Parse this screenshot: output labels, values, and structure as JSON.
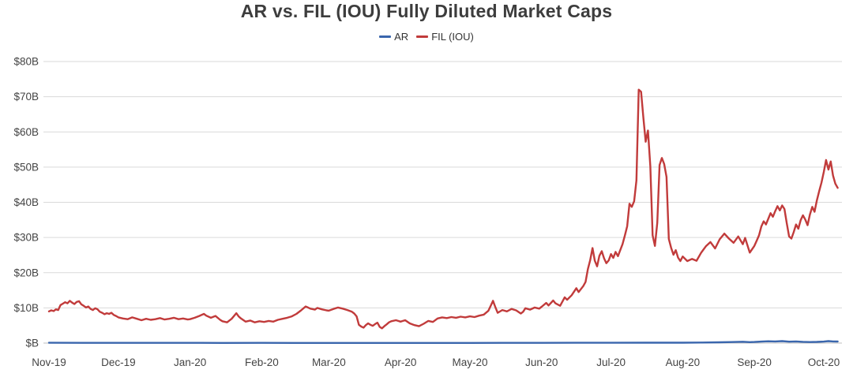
{
  "chart_data": {
    "type": "line",
    "title": "AR vs. FIL (IOU) Fully Diluted Market Caps",
    "xlabel": "",
    "ylabel": "",
    "x_unit": "days since Nov-19 start",
    "xlim": [
      0,
      341
    ],
    "ylim": [
      0,
      80
    ],
    "grid": true,
    "legend_position": "top-center",
    "x_tick_labels": [
      "Nov-19",
      "Dec-19",
      "Jan-20",
      "Feb-20",
      "Mar-20",
      "Apr-20",
      "May-20",
      "Jun-20",
      "Jul-20",
      "Aug-20",
      "Sep-20",
      "Oct-20"
    ],
    "x_tick_days": [
      0,
      30,
      61,
      92,
      121,
      152,
      182,
      213,
      243,
      274,
      305,
      335
    ],
    "y_ticks": [
      0,
      10,
      20,
      30,
      40,
      50,
      60,
      70,
      80
    ],
    "y_tick_labels": [
      "$B",
      "$10B",
      "$20B",
      "$30B",
      "$40B",
      "$50B",
      "$60B",
      "$70B",
      "$80B"
    ],
    "series": [
      {
        "name": "AR",
        "color": "#3a66ad",
        "unit": "USD billions",
        "points": [
          [
            0,
            0.08
          ],
          [
            15,
            0.07
          ],
          [
            30,
            0.07
          ],
          [
            45,
            0.06
          ],
          [
            61,
            0.06
          ],
          [
            75,
            0.05
          ],
          [
            92,
            0.06
          ],
          [
            106,
            0.05
          ],
          [
            121,
            0.05
          ],
          [
            136,
            0.04
          ],
          [
            152,
            0.04
          ],
          [
            167,
            0.05
          ],
          [
            182,
            0.05
          ],
          [
            197,
            0.06
          ],
          [
            213,
            0.07
          ],
          [
            228,
            0.09
          ],
          [
            243,
            0.1
          ],
          [
            258,
            0.12
          ],
          [
            274,
            0.12
          ],
          [
            282,
            0.15
          ],
          [
            290,
            0.22
          ],
          [
            295,
            0.3
          ],
          [
            300,
            0.38
          ],
          [
            303,
            0.28
          ],
          [
            305,
            0.32
          ],
          [
            308,
            0.42
          ],
          [
            311,
            0.52
          ],
          [
            314,
            0.46
          ],
          [
            317,
            0.55
          ],
          [
            320,
            0.4
          ],
          [
            323,
            0.48
          ],
          [
            326,
            0.36
          ],
          [
            329,
            0.3
          ],
          [
            332,
            0.34
          ],
          [
            335,
            0.42
          ],
          [
            337,
            0.55
          ],
          [
            339,
            0.48
          ],
          [
            341,
            0.45
          ]
        ]
      },
      {
        "name": "FIL (IOU)",
        "color": "#c13b3b",
        "unit": "USD billions",
        "points": [
          [
            0,
            9.0
          ],
          [
            1,
            9.3
          ],
          [
            2,
            9.1
          ],
          [
            3,
            9.6
          ],
          [
            4,
            9.4
          ],
          [
            5,
            10.8
          ],
          [
            6,
            11.2
          ],
          [
            7,
            11.6
          ],
          [
            8,
            11.3
          ],
          [
            9,
            12.0
          ],
          [
            10,
            11.5
          ],
          [
            11,
            11.1
          ],
          [
            12,
            11.7
          ],
          [
            13,
            11.9
          ],
          [
            14,
            11.0
          ],
          [
            15,
            10.6
          ],
          [
            16,
            10.1
          ],
          [
            17,
            10.4
          ],
          [
            18,
            9.7
          ],
          [
            19,
            9.4
          ],
          [
            20,
            9.9
          ],
          [
            21,
            9.6
          ],
          [
            22,
            8.9
          ],
          [
            23,
            8.6
          ],
          [
            24,
            8.2
          ],
          [
            25,
            8.5
          ],
          [
            26,
            8.3
          ],
          [
            27,
            8.6
          ],
          [
            28,
            8.0
          ],
          [
            29,
            7.7
          ],
          [
            30,
            7.3
          ],
          [
            32,
            7.0
          ],
          [
            34,
            6.8
          ],
          [
            36,
            7.3
          ],
          [
            38,
            6.9
          ],
          [
            40,
            6.5
          ],
          [
            42,
            6.9
          ],
          [
            44,
            6.6
          ],
          [
            46,
            6.8
          ],
          [
            48,
            7.1
          ],
          [
            50,
            6.7
          ],
          [
            52,
            6.9
          ],
          [
            54,
            7.2
          ],
          [
            56,
            6.8
          ],
          [
            58,
            7.0
          ],
          [
            60,
            6.7
          ],
          [
            61,
            6.8
          ],
          [
            63,
            7.2
          ],
          [
            65,
            7.7
          ],
          [
            67,
            8.3
          ],
          [
            68,
            7.8
          ],
          [
            70,
            7.2
          ],
          [
            72,
            7.7
          ],
          [
            74,
            6.6
          ],
          [
            75,
            6.2
          ],
          [
            77,
            5.9
          ],
          [
            79,
            6.9
          ],
          [
            81,
            8.5
          ],
          [
            82,
            7.6
          ],
          [
            83,
            7.0
          ],
          [
            85,
            6.1
          ],
          [
            87,
            6.4
          ],
          [
            89,
            5.9
          ],
          [
            91,
            6.2
          ],
          [
            93,
            6.0
          ],
          [
            95,
            6.3
          ],
          [
            97,
            6.1
          ],
          [
            99,
            6.6
          ],
          [
            101,
            6.9
          ],
          [
            103,
            7.2
          ],
          [
            105,
            7.6
          ],
          [
            107,
            8.3
          ],
          [
            109,
            9.3
          ],
          [
            111,
            10.4
          ],
          [
            112,
            10.1
          ],
          [
            113,
            9.8
          ],
          [
            115,
            9.5
          ],
          [
            116,
            10.0
          ],
          [
            118,
            9.6
          ],
          [
            120,
            9.3
          ],
          [
            121,
            9.2
          ],
          [
            123,
            9.7
          ],
          [
            125,
            10.1
          ],
          [
            127,
            9.8
          ],
          [
            129,
            9.4
          ],
          [
            131,
            8.9
          ],
          [
            132,
            8.4
          ],
          [
            133,
            7.6
          ],
          [
            134,
            5.2
          ],
          [
            135,
            4.7
          ],
          [
            136,
            4.4
          ],
          [
            137,
            5.1
          ],
          [
            138,
            5.6
          ],
          [
            139,
            5.2
          ],
          [
            140,
            4.9
          ],
          [
            141,
            5.4
          ],
          [
            142,
            5.8
          ],
          [
            143,
            4.6
          ],
          [
            144,
            4.2
          ],
          [
            145,
            4.8
          ],
          [
            146,
            5.3
          ],
          [
            147,
            5.9
          ],
          [
            148,
            6.2
          ],
          [
            150,
            6.5
          ],
          [
            151,
            6.3
          ],
          [
            152,
            6.1
          ],
          [
            154,
            6.5
          ],
          [
            156,
            5.6
          ],
          [
            158,
            5.1
          ],
          [
            160,
            4.8
          ],
          [
            162,
            5.5
          ],
          [
            164,
            6.3
          ],
          [
            166,
            6.0
          ],
          [
            168,
            7.0
          ],
          [
            170,
            7.3
          ],
          [
            172,
            7.1
          ],
          [
            174,
            7.4
          ],
          [
            176,
            7.2
          ],
          [
            178,
            7.5
          ],
          [
            180,
            7.3
          ],
          [
            182,
            7.6
          ],
          [
            184,
            7.4
          ],
          [
            186,
            7.8
          ],
          [
            188,
            8.1
          ],
          [
            190,
            9.2
          ],
          [
            191,
            10.6
          ],
          [
            192,
            12.0
          ],
          [
            193,
            10.2
          ],
          [
            194,
            8.6
          ],
          [
            196,
            9.4
          ],
          [
            198,
            9.0
          ],
          [
            200,
            9.7
          ],
          [
            202,
            9.3
          ],
          [
            204,
            8.4
          ],
          [
            205,
            8.9
          ],
          [
            206,
            9.9
          ],
          [
            208,
            9.5
          ],
          [
            210,
            10.1
          ],
          [
            212,
            9.8
          ],
          [
            213,
            10.3
          ],
          [
            215,
            11.4
          ],
          [
            216,
            10.7
          ],
          [
            218,
            12.1
          ],
          [
            219,
            11.3
          ],
          [
            221,
            10.6
          ],
          [
            223,
            13.0
          ],
          [
            224,
            12.3
          ],
          [
            226,
            13.6
          ],
          [
            228,
            15.6
          ],
          [
            229,
            14.5
          ],
          [
            231,
            16.2
          ],
          [
            232,
            17.4
          ],
          [
            233,
            21.0
          ],
          [
            234,
            23.5
          ],
          [
            235,
            27.0
          ],
          [
            236,
            23.4
          ],
          [
            237,
            21.8
          ],
          [
            238,
            24.8
          ],
          [
            239,
            26.1
          ],
          [
            240,
            24.1
          ],
          [
            241,
            22.7
          ],
          [
            242,
            23.5
          ],
          [
            243,
            25.3
          ],
          [
            244,
            24.2
          ],
          [
            245,
            25.9
          ],
          [
            246,
            24.7
          ],
          [
            247,
            26.4
          ],
          [
            248,
            28.1
          ],
          [
            249,
            30.6
          ],
          [
            250,
            33.2
          ],
          [
            251,
            39.6
          ],
          [
            252,
            38.7
          ],
          [
            253,
            40.3
          ],
          [
            254,
            46.2
          ],
          [
            255,
            72.0
          ],
          [
            256,
            71.4
          ],
          [
            257,
            64.0
          ],
          [
            258,
            57.2
          ],
          [
            259,
            60.4
          ],
          [
            260,
            50.2
          ],
          [
            261,
            30.6
          ],
          [
            262,
            27.6
          ],
          [
            263,
            34.2
          ],
          [
            264,
            50.6
          ],
          [
            265,
            52.6
          ],
          [
            266,
            50.9
          ],
          [
            267,
            47.2
          ],
          [
            268,
            29.6
          ],
          [
            269,
            27.1
          ],
          [
            270,
            25.1
          ],
          [
            271,
            26.4
          ],
          [
            272,
            24.3
          ],
          [
            273,
            23.3
          ],
          [
            274,
            24.6
          ],
          [
            276,
            23.3
          ],
          [
            278,
            23.9
          ],
          [
            280,
            23.4
          ],
          [
            282,
            25.7
          ],
          [
            284,
            27.5
          ],
          [
            286,
            28.7
          ],
          [
            288,
            26.9
          ],
          [
            290,
            29.5
          ],
          [
            292,
            31.1
          ],
          [
            294,
            29.7
          ],
          [
            296,
            28.5
          ],
          [
            298,
            30.3
          ],
          [
            300,
            28.1
          ],
          [
            301,
            29.9
          ],
          [
            303,
            25.7
          ],
          [
            305,
            27.6
          ],
          [
            306,
            29.1
          ],
          [
            307,
            30.6
          ],
          [
            308,
            33.1
          ],
          [
            309,
            34.6
          ],
          [
            310,
            33.7
          ],
          [
            311,
            35.3
          ],
          [
            312,
            36.9
          ],
          [
            313,
            35.9
          ],
          [
            314,
            37.5
          ],
          [
            315,
            38.9
          ],
          [
            316,
            37.7
          ],
          [
            317,
            39.1
          ],
          [
            318,
            38.1
          ],
          [
            319,
            34.1
          ],
          [
            320,
            30.3
          ],
          [
            321,
            29.7
          ],
          [
            322,
            31.5
          ],
          [
            323,
            33.7
          ],
          [
            324,
            32.5
          ],
          [
            325,
            34.9
          ],
          [
            326,
            36.3
          ],
          [
            327,
            35.1
          ],
          [
            328,
            33.5
          ],
          [
            329,
            36.5
          ],
          [
            330,
            38.7
          ],
          [
            331,
            37.3
          ],
          [
            332,
            40.5
          ],
          [
            333,
            43.1
          ],
          [
            334,
            45.6
          ],
          [
            335,
            48.6
          ],
          [
            336,
            52.0
          ],
          [
            337,
            49.3
          ],
          [
            338,
            51.6
          ],
          [
            339,
            47.6
          ],
          [
            340,
            45.3
          ],
          [
            341,
            44.1
          ]
        ]
      }
    ]
  },
  "legend": [
    {
      "label": "AR",
      "color": "#3a66ad"
    },
    {
      "label": "FIL (IOU)",
      "color": "#c13b3b"
    }
  ],
  "colors": {
    "grid": "#d9d9d9",
    "axis": "#bfbfbf",
    "title": "#3d3d3d",
    "tick_text": "#444444"
  }
}
